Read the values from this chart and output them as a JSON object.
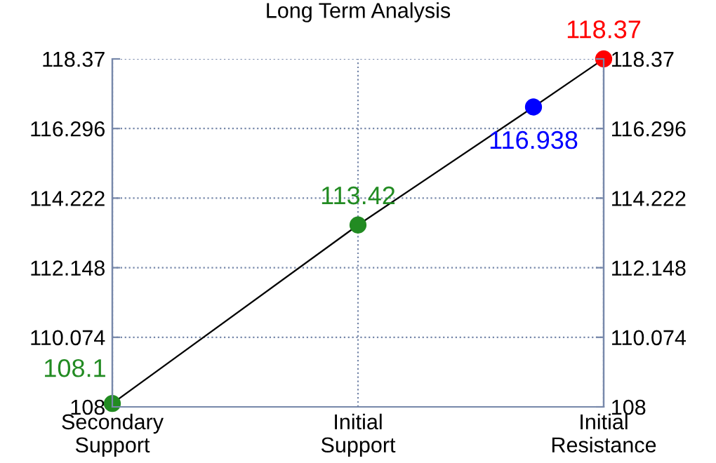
{
  "chart_data": {
    "type": "line",
    "title": "Long Term Analysis",
    "categories": [
      "Secondary\nSupport",
      null,
      null,
      null,
      null,
      null,
      null,
      "Initial\nSupport",
      null,
      null,
      null,
      null,
      null,
      null,
      "Initial\nResistance"
    ],
    "ylim": [
      108,
      118.37
    ],
    "yticks": [
      108,
      110.074,
      112.148,
      114.222,
      116.296,
      118.37
    ],
    "y2lim": [
      108,
      118.37
    ],
    "y2ticks": [
      108,
      110.074,
      112.148,
      114.222,
      116.296,
      118.37
    ],
    "grid": true,
    "marker": "circle",
    "series": [
      {
        "color": "#000000",
        "values": [
          108.1,
          null,
          null,
          null,
          null,
          null,
          null,
          113.42,
          null,
          null,
          null,
          null,
          116.938,
          null,
          118.37
        ],
        "colors": [
          "#228b22",
          null,
          null,
          null,
          null,
          null,
          null,
          "#228b22",
          null,
          null,
          null,
          null,
          "#0000ff",
          null,
          "#ff0000"
        ],
        "value_labels": [
          "108.1",
          null,
          null,
          null,
          null,
          null,
          null,
          "113.42",
          null,
          null,
          null,
          null,
          "116.938",
          null,
          "118.37"
        ]
      }
    ]
  }
}
